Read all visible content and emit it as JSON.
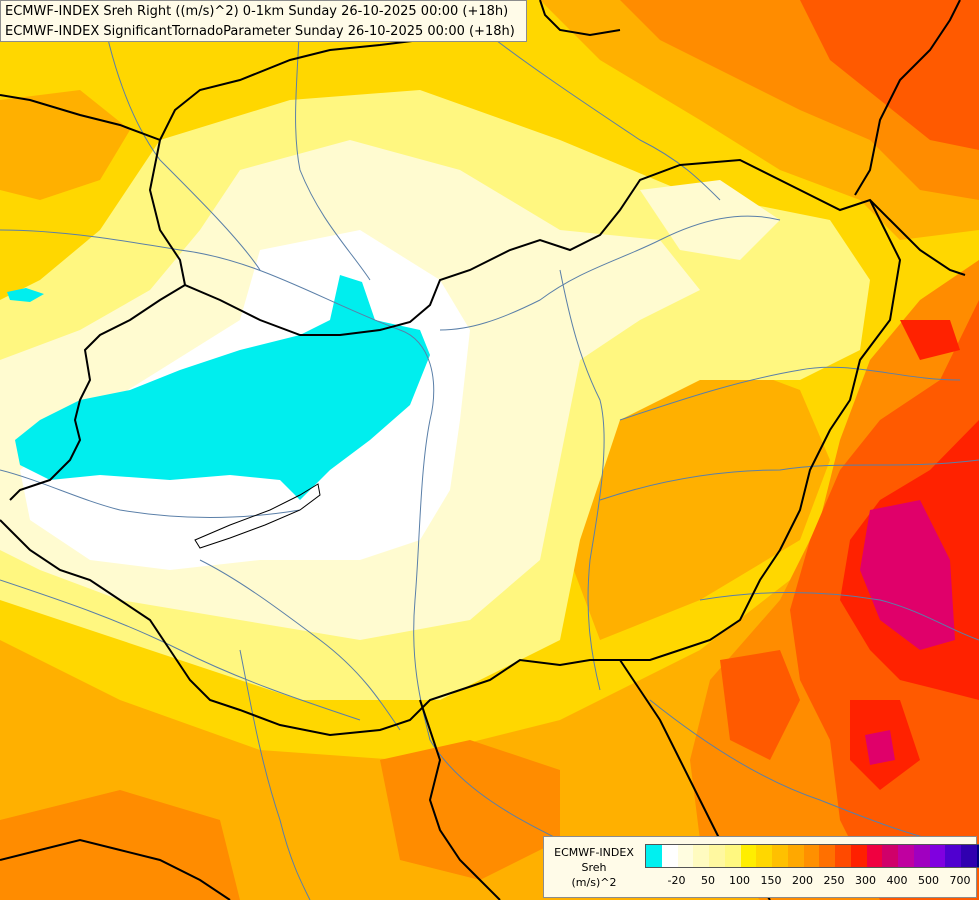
{
  "header": {
    "line1": "ECMWF-INDEX Sreh Right ((m/s)^2) 0-1km Sunday 26-10-2025 00:00 (+18h)",
    "line2": "ECMWF-INDEX SignificantTornadoParameter Sunday 26-10-2025 00:00 (+18h)"
  },
  "legend": {
    "title1": "ECMWF-INDEX",
    "title2": "Sreh",
    "title3": "(m/s)^2",
    "colors": [
      "#00f0f0",
      "#ffffff",
      "#fffde0",
      "#fffbc0",
      "#fff8a0",
      "#fff880",
      "#ffee00",
      "#ffd700",
      "#ffc000",
      "#ffa800",
      "#ff9000",
      "#ff7000",
      "#ff4a00",
      "#ff2000",
      "#f00040",
      "#d0006a",
      "#c000a0",
      "#a000c0",
      "#8000e0",
      "#5000d0",
      "#3000b0",
      "#000080"
    ],
    "ticks": [
      {
        "label": "-20",
        "index": 1
      },
      {
        "label": "50",
        "index": 3
      },
      {
        "label": "100",
        "index": 5
      },
      {
        "label": "150",
        "index": 7
      },
      {
        "label": "200",
        "index": 9
      },
      {
        "label": "250",
        "index": 11
      },
      {
        "label": "300",
        "index": 13
      },
      {
        "label": "400",
        "index": 15
      },
      {
        "label": "500",
        "index": 17
      },
      {
        "label": "700",
        "index": 19
      }
    ]
  },
  "map_colors": {
    "background": "#ffd700",
    "cyan": "#00eeee",
    "white": "#ffffff",
    "pale": "#fffbd0",
    "light_yellow": "#fff780",
    "yellow": "#ffe600",
    "orange": "#ffb000",
    "dark_orange": "#ff8c00",
    "red_orange": "#ff5a00",
    "red": "#ff2200",
    "magenta": "#e0006a",
    "border": "#000000",
    "river": "#5a7fa8"
  }
}
